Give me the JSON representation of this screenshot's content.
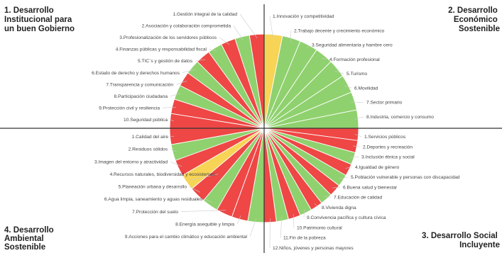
{
  "colors": {
    "green": "#8fd16e",
    "red": "#ee4745",
    "yellow": "#f7d455",
    "axis": "#333333",
    "leader": "#cccccc"
  },
  "quadrants": [
    {
      "id": "q1",
      "title_lines": [
        "1. Desarrollo",
        "Institucional para",
        "un buen Gobierno"
      ],
      "items": [
        {
          "label": "1.Gestión integral de la calidad",
          "status": "red"
        },
        {
          "label": "2.Asociación y colaboración comprometida",
          "status": "green"
        },
        {
          "label": "3.Profesionalización de los servidores públicos",
          "status": "red"
        },
        {
          "label": "4.Finanzas públicas y responsabilidad fiscal",
          "status": "green"
        },
        {
          "label": "5.TIC´s y gestión de datos",
          "status": "red"
        },
        {
          "label": "6.Estado de derecho y derechos humanos",
          "status": "green"
        },
        {
          "label": "7.Transparencia y comunicación",
          "status": "red"
        },
        {
          "label": "8.Participación ciudadana",
          "status": "green"
        },
        {
          "label": "9.Protección civil y resiliencia",
          "status": "red"
        },
        {
          "label": "10.Seguridad pública",
          "status": "red"
        }
      ]
    },
    {
      "id": "q2",
      "title_lines": [
        "2. Desarrollo",
        "Económico",
        "Sostenible"
      ],
      "items": [
        {
          "label": "1.Innovación y competitividad",
          "status": "yellow"
        },
        {
          "label": "2.Trabajo decente y crecimiento económico",
          "status": "green"
        },
        {
          "label": "3.Seguridad alimentaria y hambre cero",
          "status": "green"
        },
        {
          "label": "4.Formación profesional",
          "status": "green"
        },
        {
          "label": "5.Turismo",
          "status": "green"
        },
        {
          "label": "6.Movilidad",
          "status": "green"
        },
        {
          "label": "7.Sector primario",
          "status": "green"
        },
        {
          "label": "8.Industria, comercio y consumo",
          "status": "green"
        }
      ]
    },
    {
      "id": "q3",
      "title_lines": [
        "3. Desarrollo Social",
        "Incluyente"
      ],
      "items": [
        {
          "label": "1.Servicios públicos",
          "status": "red"
        },
        {
          "label": "2.Deportes y recreación",
          "status": "red"
        },
        {
          "label": "3.Inclusión étnica y social",
          "status": "green"
        },
        {
          "label": "4.Igualdad de género",
          "status": "red"
        },
        {
          "label": "5.Población vulnerable y personas con discapacidad",
          "status": "green"
        },
        {
          "label": "6.Buena salud y bienestar",
          "status": "red"
        },
        {
          "label": "7.Educación de calidad",
          "status": "green"
        },
        {
          "label": "8.Vivienda digna",
          "status": "red"
        },
        {
          "label": "9.Convivencia pacífica y cultura cívica",
          "status": "green"
        },
        {
          "label": "10.Patrimonio cultural",
          "status": "red"
        },
        {
          "label": "11.Fin de la pobreza",
          "status": "green"
        },
        {
          "label": "12.Niños, jóvenes y personas mayores",
          "status": "red"
        }
      ]
    },
    {
      "id": "q4",
      "title_lines": [
        "4. Desarrollo",
        "Ambiental",
        "Sostenible"
      ],
      "items": [
        {
          "label": "1.Calidad del aire",
          "status": "red"
        },
        {
          "label": "2.Residuos sólidos",
          "status": "green"
        },
        {
          "label": "3.Imagen del entorno y atractividad",
          "status": "red"
        },
        {
          "label": "4.Recursos naturales, biodiversidad y ecosistemas",
          "status": "yellow"
        },
        {
          "label": "5.Planeación urbana y desarrollo",
          "status": "red"
        },
        {
          "label": "6.Agua limpia, saneamiento y aguas residuales",
          "status": "green"
        },
        {
          "label": "7.Protección del suelo",
          "status": "red"
        },
        {
          "label": "8.Energía asequible y limpia",
          "status": "red"
        },
        {
          "label": "9.Acciones para el cambio climático y educación ambiental",
          "status": "green"
        }
      ]
    }
  ]
}
